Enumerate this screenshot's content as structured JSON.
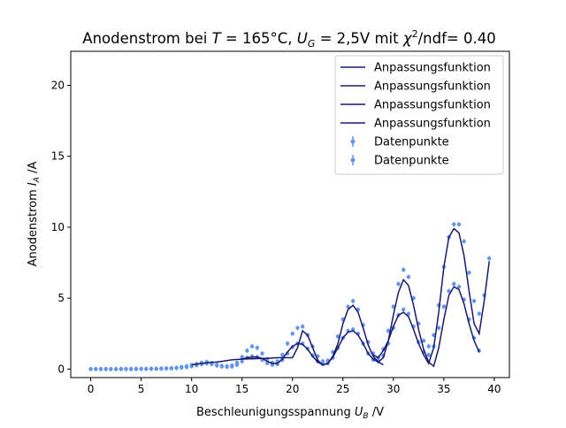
{
  "chart_data": {
    "type": "line",
    "title": "Anodenstrom bei T = 165°C, U_G = 2,5V mit χ²/ndf= 0.40",
    "title_parts": {
      "prefix": "Anodenstrom bei ",
      "T": "T",
      "eq1": " = 165°C, ",
      "U": "U",
      "U_sub": "G",
      "eq2": " = 2,5V mit ",
      "chi": "χ",
      "chi_sup": "2",
      "suffix": "/ndf= 0.40"
    },
    "xlabel": "Beschleunigungsspannung U_B /V",
    "xlabel_parts": {
      "main": "Beschleunigungsspannung ",
      "var": "U",
      "sub": "B",
      "unit": " /V"
    },
    "ylabel": "Anodenstrom I_A /A",
    "ylabel_parts": {
      "main": "Anodenstrom ",
      "var": "I",
      "sub": "A",
      "unit": " /A"
    },
    "xlim": [
      -1.98,
      41.5
    ],
    "ylim": [
      -0.6,
      22.4
    ],
    "xticks": [
      0,
      5,
      10,
      15,
      20,
      25,
      30,
      35,
      40
    ],
    "yticks": [
      0,
      5,
      10,
      15,
      20
    ],
    "grid": false,
    "legend_position": "top-right",
    "colors": {
      "fit": "#191970",
      "data": "#6495ed"
    },
    "legend": [
      {
        "label": "Anpassungsfunktion",
        "kind": "line"
      },
      {
        "label": "Anpassungsfunktion",
        "kind": "line"
      },
      {
        "label": "Anpassungsfunktion",
        "kind": "line"
      },
      {
        "label": "Anpassungsfunktion",
        "kind": "line"
      },
      {
        "label": "Datenpunkte",
        "kind": "errorbar"
      },
      {
        "label": "Datenpunkte",
        "kind": "errorbar"
      }
    ],
    "series": [
      {
        "name": "Datenpunkte",
        "kind": "data",
        "x": [
          0.0,
          0.5,
          1.0,
          1.5,
          2.0,
          2.5,
          3.0,
          3.5,
          4.0,
          4.5,
          5.0,
          5.5,
          6.0,
          6.5,
          7.0,
          7.5,
          8.0,
          8.5,
          9.0,
          9.5,
          10.0,
          10.5,
          11.0,
          11.5,
          12.0,
          12.5,
          13.0,
          13.5,
          14.0,
          14.5,
          15.0,
          15.5,
          16.0,
          16.5,
          17.0,
          17.5,
          18.0,
          18.5,
          19.0,
          19.5,
          20.0,
          20.5,
          21.0,
          21.5,
          22.0,
          22.5,
          23.0,
          23.5,
          24.0,
          24.5,
          25.0,
          25.5,
          26.0,
          26.5,
          27.0,
          27.5,
          28.0,
          28.5,
          29.0,
          29.5,
          30.0,
          30.5,
          31.0,
          31.5,
          32.0,
          32.5,
          33.0,
          33.5,
          34.0,
          34.5,
          35.0,
          35.5,
          36.0,
          36.5,
          37.0,
          37.5,
          38.0,
          38.5,
          39.0,
          39.5
        ],
        "y": [
          0.0,
          0.0,
          0.0,
          0.0,
          0.0,
          0.0,
          0.01,
          0.01,
          0.01,
          0.01,
          0.02,
          0.02,
          0.03,
          0.03,
          0.04,
          0.05,
          0.07,
          0.1,
          0.15,
          0.2,
          0.28,
          0.36,
          0.45,
          0.5,
          0.42,
          0.3,
          0.22,
          0.2,
          0.25,
          0.45,
          0.85,
          1.3,
          1.6,
          1.5,
          1.1,
          0.7,
          0.45,
          0.55,
          1.0,
          1.8,
          2.5,
          2.9,
          3.0,
          2.4,
          1.6,
          0.9,
          0.55,
          0.6,
          1.2,
          2.3,
          3.5,
          4.4,
          4.8,
          4.2,
          3.1,
          1.9,
          1.1,
          0.8,
          1.4,
          2.7,
          4.4,
          6.0,
          7.0,
          6.5,
          5.0,
          3.2,
          2.0,
          1.6,
          2.4,
          4.5,
          7.2,
          9.3,
          10.2,
          10.2,
          9.0,
          6.8,
          4.8,
          3.9,
          5.2,
          7.8
        ]
      },
      {
        "name": "Datenpunkte",
        "kind": "data",
        "x": [
          0.0,
          0.5,
          1.0,
          1.5,
          2.0,
          2.5,
          3.0,
          3.5,
          4.0,
          4.5,
          5.0,
          5.5,
          6.0,
          6.5,
          7.0,
          7.5,
          8.0,
          8.5,
          9.0,
          9.5,
          10.0,
          10.5,
          11.0,
          11.5,
          12.0,
          12.5,
          13.0,
          13.5,
          14.0,
          14.5,
          15.0,
          15.5,
          16.0,
          16.5,
          17.0,
          17.5,
          18.0,
          18.5,
          19.0,
          19.5,
          20.0,
          20.5,
          21.0,
          21.5,
          22.0,
          22.5,
          23.0,
          23.5,
          24.0,
          24.5,
          25.0,
          25.5,
          26.0,
          26.5,
          27.0,
          27.5,
          28.0,
          28.5,
          29.0,
          29.5,
          30.0,
          30.5,
          31.0,
          31.5,
          32.0,
          32.5,
          33.0,
          33.5,
          34.0,
          34.5,
          35.0,
          35.5,
          36.0,
          36.5,
          37.0,
          37.5,
          38.0,
          38.5
        ],
        "y": [
          0.0,
          0.0,
          0.0,
          0.0,
          0.0,
          0.0,
          0.0,
          0.0,
          0.0,
          0.01,
          0.01,
          0.01,
          0.02,
          0.02,
          0.03,
          0.04,
          0.05,
          0.07,
          0.1,
          0.14,
          0.2,
          0.27,
          0.35,
          0.4,
          0.35,
          0.25,
          0.18,
          0.16,
          0.18,
          0.3,
          0.55,
          0.8,
          0.9,
          0.85,
          0.65,
          0.42,
          0.3,
          0.35,
          0.65,
          1.1,
          1.55,
          1.8,
          1.8,
          1.45,
          0.95,
          0.55,
          0.35,
          0.4,
          0.8,
          1.5,
          2.2,
          2.7,
          2.8,
          2.5,
          1.8,
          1.1,
          0.65,
          0.55,
          0.95,
          1.8,
          2.9,
          3.8,
          4.2,
          3.9,
          3.0,
          1.9,
          1.2,
          1.0,
          1.6,
          2.9,
          4.4,
          5.5,
          6.0,
          5.8,
          4.9,
          3.5,
          2.2,
          1.3
        ]
      },
      {
        "name": "Anpassungsfunktion",
        "kind": "fit",
        "x": [
          10.0,
          10.5,
          11.0,
          11.5,
          12.0,
          12.5,
          13.0,
          13.5,
          14.0,
          14.5,
          15.0,
          15.5,
          16.0,
          16.5,
          17.0,
          17.5,
          18.0,
          18.5,
          19.0,
          19.5,
          20.0,
          20.5,
          21.0,
          21.5,
          22.0,
          22.5,
          23.0
        ],
        "y": [
          0.3,
          0.35,
          0.4,
          0.45,
          0.48,
          0.5,
          0.55,
          0.6,
          0.65,
          0.68,
          0.7,
          0.72,
          0.73,
          0.74,
          0.75,
          0.76,
          0.78,
          0.8,
          0.8,
          0.8,
          0.8,
          1.5,
          2.7,
          2.4,
          1.5,
          0.6,
          0.3
        ]
      },
      {
        "name": "Anpassungsfunktion",
        "kind": "fit",
        "x": [
          15.0,
          15.5,
          16.0,
          16.5,
          17.0,
          17.5,
          18.0,
          18.5,
          19.0,
          19.5,
          20.0,
          20.5,
          21.0,
          21.5,
          22.0,
          22.5,
          23.0,
          23.5,
          24.0,
          24.5,
          25.0,
          25.5,
          26.0,
          26.5,
          27.0,
          27.5,
          28.0,
          28.5,
          29.0
        ],
        "y": [
          0.7,
          0.8,
          0.85,
          0.85,
          0.75,
          0.55,
          0.4,
          0.4,
          0.7,
          1.2,
          1.6,
          1.8,
          1.75,
          1.4,
          0.9,
          0.5,
          0.3,
          0.4,
          0.9,
          1.8,
          3.2,
          4.2,
          4.5,
          4.0,
          2.9,
          1.7,
          0.9,
          0.5,
          0.3
        ]
      },
      {
        "name": "Anpassungsfunktion",
        "kind": "fit",
        "x": [
          23.0,
          23.5,
          24.0,
          24.5,
          25.0,
          25.5,
          26.0,
          26.5,
          27.0,
          27.5,
          28.0,
          28.5,
          29.0,
          29.5,
          30.0,
          30.5,
          31.0,
          31.5,
          32.0,
          32.5,
          33.0,
          33.5,
          34.0,
          34.5,
          35.0,
          35.5,
          36.0,
          36.5,
          37.0,
          37.5,
          38.0,
          38.5
        ],
        "y": [
          0.3,
          0.4,
          0.85,
          1.5,
          2.2,
          2.6,
          2.7,
          2.4,
          1.8,
          1.1,
          0.7,
          0.5,
          0.8,
          2.0,
          3.8,
          5.4,
          6.3,
          5.9,
          4.5,
          2.8,
          1.4,
          0.5,
          0.2,
          1.5,
          3.5,
          5.2,
          5.8,
          5.6,
          4.6,
          3.2,
          2.0,
          1.2
        ]
      },
      {
        "name": "Anpassungsfunktion",
        "kind": "fit",
        "x": [
          28.0,
          28.5,
          29.0,
          29.5,
          30.0,
          30.5,
          31.0,
          31.5,
          32.0,
          32.5,
          33.0,
          33.5,
          34.0,
          34.5,
          35.0,
          35.5,
          36.0,
          36.5,
          37.0,
          37.5,
          38.0,
          38.5,
          39.0,
          39.5
        ],
        "y": [
          1.0,
          0.8,
          1.3,
          2.0,
          3.0,
          3.8,
          4.0,
          3.7,
          2.8,
          1.8,
          1.0,
          0.4,
          1.5,
          4.0,
          7.2,
          9.3,
          9.9,
          9.6,
          8.0,
          5.5,
          3.2,
          2.5,
          4.8,
          7.6
        ]
      }
    ]
  }
}
